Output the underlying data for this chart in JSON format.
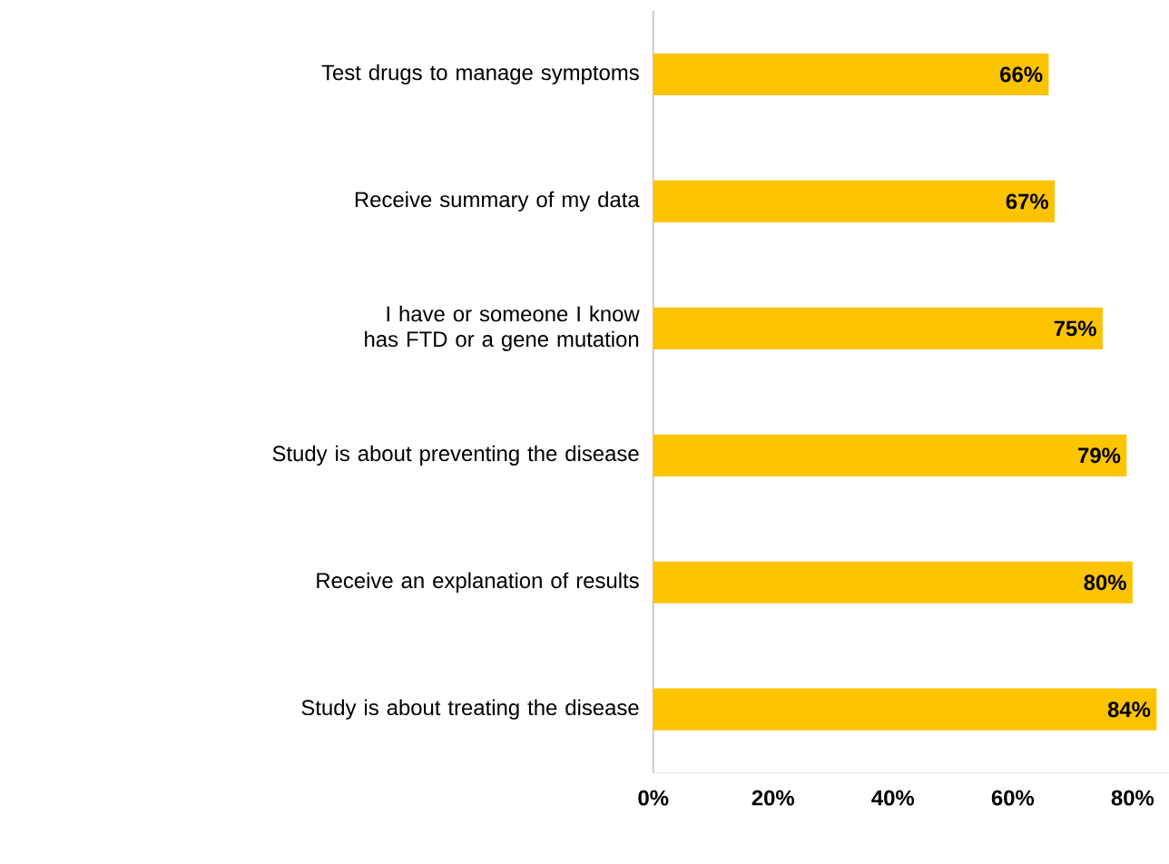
{
  "chart_data": {
    "type": "bar",
    "orientation": "horizontal",
    "categories": [
      "Test drugs to manage symptoms",
      "Receive summary of my data",
      "I have or someone I know has FTD or a gene mutation",
      "Study is about preventing the disease",
      "Receive an explanation of results",
      "Study is about treating the disease"
    ],
    "values": [
      66,
      67,
      75,
      79,
      80,
      84
    ],
    "value_labels": [
      "66%",
      "67%",
      "75%",
      "79%",
      "80%",
      "84%"
    ],
    "color": "#fcc400",
    "xlim": [
      0,
      86
    ],
    "xticks": [
      {
        "value": 0,
        "label": "0%"
      },
      {
        "value": 20,
        "label": "20%"
      },
      {
        "value": 40,
        "label": "40%"
      },
      {
        "value": 60,
        "label": "60%"
      },
      {
        "value": 80,
        "label": "80%"
      }
    ]
  }
}
